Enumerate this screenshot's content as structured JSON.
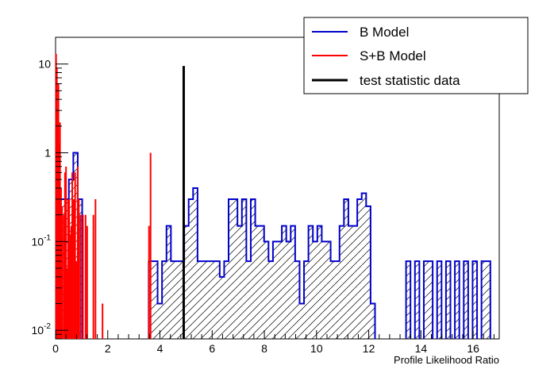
{
  "chart_data": {
    "type": "bar",
    "title": "",
    "xlabel": "Profile Likelihood Ratio",
    "ylabel": "",
    "xlim": [
      0,
      17
    ],
    "ylim": [
      0.008,
      20
    ],
    "log_y": true,
    "grid": false,
    "legend_placement": "top-right",
    "x_ticks": [
      0,
      2,
      4,
      6,
      8,
      10,
      12,
      14,
      16
    ],
    "y_ticks": [
      {
        "value": 0.01,
        "mantissa": "10",
        "exponent": "-2"
      },
      {
        "value": 0.1,
        "mantissa": "10",
        "exponent": "-1"
      },
      {
        "value": 1,
        "mantissa": "1",
        "exponent": ""
      },
      {
        "value": 10,
        "mantissa": "10",
        "exponent": ""
      }
    ],
    "series": [
      {
        "name": "B Model",
        "color": "#0000cc",
        "style": "histogram-hatched",
        "bin_width": 0.17,
        "bins": [
          [
            0.17,
            0.3
          ],
          [
            0.34,
            0.3
          ],
          [
            0.51,
            0.5
          ],
          [
            0.68,
            1.0
          ],
          [
            0.85,
            0.3
          ],
          [
            3.57,
            0.06
          ],
          [
            3.74,
            0.06
          ],
          [
            3.91,
            0.02
          ],
          [
            4.08,
            0.06
          ],
          [
            4.25,
            0.15
          ],
          [
            4.42,
            0.06
          ],
          [
            4.59,
            0.06
          ],
          [
            4.76,
            0.06
          ],
          [
            4.93,
            0.15
          ],
          [
            5.1,
            0.3
          ],
          [
            5.27,
            0.4
          ],
          [
            5.44,
            0.06
          ],
          [
            5.61,
            0.06
          ],
          [
            5.78,
            0.06
          ],
          [
            5.95,
            0.06
          ],
          [
            6.12,
            0.06
          ],
          [
            6.29,
            0.04
          ],
          [
            6.46,
            0.06
          ],
          [
            6.63,
            0.3
          ],
          [
            6.8,
            0.3
          ],
          [
            6.97,
            0.15
          ],
          [
            7.14,
            0.3
          ],
          [
            7.31,
            0.06
          ],
          [
            7.48,
            0.3
          ],
          [
            7.65,
            0.15
          ],
          [
            7.82,
            0.15
          ],
          [
            7.99,
            0.1
          ],
          [
            8.16,
            0.06
          ],
          [
            8.33,
            0.1
          ],
          [
            8.5,
            0.1
          ],
          [
            8.67,
            0.15
          ],
          [
            8.84,
            0.1
          ],
          [
            9.01,
            0.15
          ],
          [
            9.18,
            0.06
          ],
          [
            9.35,
            0.02
          ],
          [
            9.52,
            0.06
          ],
          [
            9.69,
            0.15
          ],
          [
            9.86,
            0.1
          ],
          [
            10.03,
            0.15
          ],
          [
            10.2,
            0.1
          ],
          [
            10.37,
            0.1
          ],
          [
            10.54,
            0.06
          ],
          [
            10.71,
            0.06
          ],
          [
            10.88,
            0.15
          ],
          [
            11.05,
            0.3
          ],
          [
            11.22,
            0.15
          ],
          [
            11.39,
            0.15
          ],
          [
            11.56,
            0.3
          ],
          [
            11.73,
            0.35
          ],
          [
            11.9,
            0.25
          ],
          [
            12.07,
            0.02
          ],
          [
            13.43,
            0.06
          ],
          [
            13.77,
            0.06
          ],
          [
            14.11,
            0.06
          ],
          [
            14.28,
            0.06
          ],
          [
            14.62,
            0.06
          ],
          [
            14.96,
            0.06
          ],
          [
            15.3,
            0.06
          ],
          [
            15.64,
            0.06
          ],
          [
            15.98,
            0.06
          ],
          [
            16.32,
            0.06
          ],
          [
            16.49,
            0.06
          ]
        ]
      },
      {
        "name": "S+B Model",
        "color": "#ff0000",
        "style": "spikes",
        "points": [
          [
            0.02,
            13.0
          ],
          [
            0.05,
            9.0
          ],
          [
            0.08,
            3.0
          ],
          [
            0.11,
            6.0
          ],
          [
            0.14,
            1.3
          ],
          [
            0.17,
            2.2
          ],
          [
            0.21,
            0.4
          ],
          [
            0.25,
            0.25
          ],
          [
            0.31,
            0.2
          ],
          [
            0.36,
            0.6
          ],
          [
            0.4,
            0.7
          ],
          [
            0.45,
            0.05
          ],
          [
            0.48,
            0.3
          ],
          [
            0.52,
            0.3
          ],
          [
            0.56,
            0.12
          ],
          [
            0.6,
            0.15
          ],
          [
            0.64,
            0.6
          ],
          [
            0.7,
            0.3
          ],
          [
            0.75,
            0.6
          ],
          [
            0.79,
            0.06
          ],
          [
            0.85,
            0.7
          ],
          [
            0.89,
            0.3
          ],
          [
            0.95,
            0.2
          ],
          [
            1.05,
            0.2
          ],
          [
            1.15,
            0.2
          ],
          [
            1.21,
            0.15
          ],
          [
            1.45,
            0.2
          ],
          [
            1.53,
            0.3
          ],
          [
            1.8,
            0.02
          ],
          [
            3.58,
            0.15
          ],
          [
            3.64,
            1.0
          ]
        ]
      },
      {
        "name": "test statistic data",
        "color": "#000000",
        "style": "line",
        "x": 4.91,
        "y": 9.5
      }
    ]
  }
}
